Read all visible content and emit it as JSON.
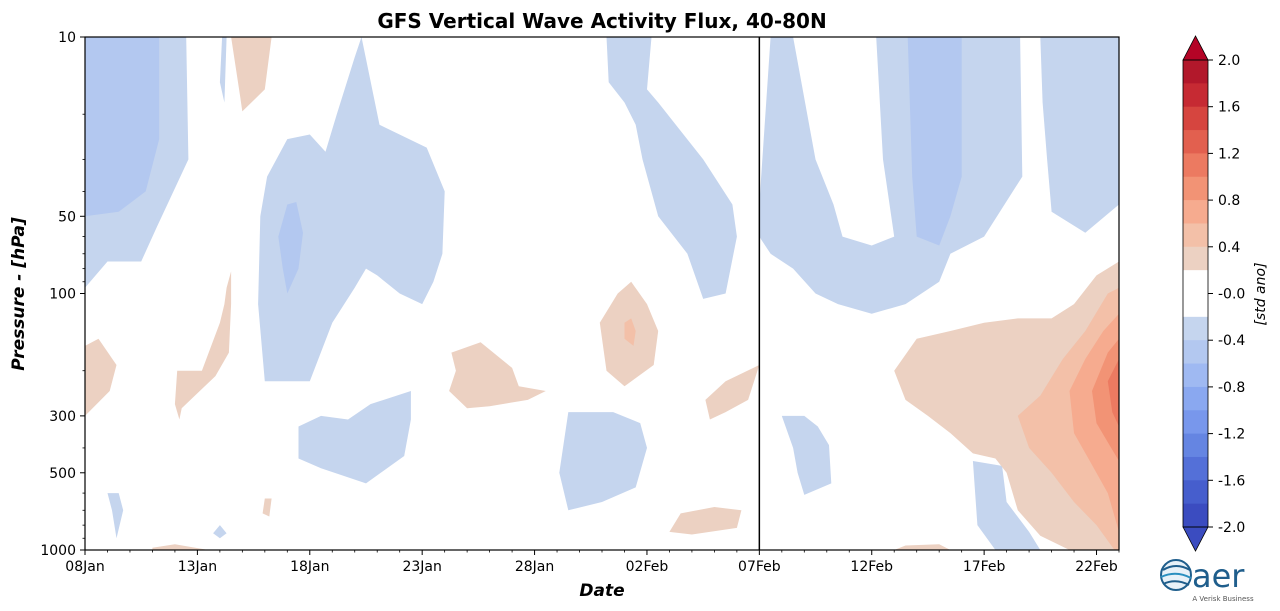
{
  "chart_data": {
    "type": "heatmap",
    "title": "GFS Vertical Wave Activity Flux, 40-80N",
    "xlabel": "Date",
    "ylabel": "Pressure - [hPa]",
    "x_ticks": [
      "08Jan",
      "13Jan",
      "18Jan",
      "23Jan",
      "28Jan",
      "02Feb",
      "07Feb",
      "12Feb",
      "17Feb",
      "22Feb"
    ],
    "x_tick_days": [
      0,
      5,
      10,
      15,
      20,
      25,
      30,
      35,
      40,
      45
    ],
    "x_range_days": [
      0,
      46
    ],
    "forecast_start": "07Feb",
    "y_ticks": [
      10,
      50,
      100,
      300,
      500,
      1000
    ],
    "y_tick_labels": [
      "10",
      "50",
      "100",
      "300",
      "500",
      "1000"
    ],
    "y_range": [
      10,
      1000
    ],
    "y_scale": "log",
    "y_inverted": true,
    "colorbar": {
      "label": "[std ano]",
      "ticks": [
        "2.0",
        "1.6",
        "1.2",
        "0.8",
        "0.4",
        "-0.0",
        "-0.4",
        "-0.8",
        "-1.2",
        "-1.6",
        "-2.0"
      ],
      "levels_top_to_bottom": [
        "#b2182b",
        "#c62a33",
        "#d6453f",
        "#e2604f",
        "#ec7a61",
        "#f29375",
        "#f6ab8f",
        "#f3c0a8",
        "#ecd1c2",
        "#ffffff",
        "#ffffff",
        "#c5d5ee",
        "#b3c8f0",
        "#9fb9f2",
        "#8aa8f0",
        "#7897ec",
        "#6585e2",
        "#5470d8",
        "#465ecd",
        "#3b4cc0"
      ],
      "over_color": "#b40426",
      "under_color": "#3b4cc0"
    },
    "regions": [
      {
        "sign": "neg",
        "level": 1,
        "points": [
          [
            0,
            10
          ],
          [
            4.5,
            10
          ],
          [
            4.6,
            30
          ],
          [
            3.2,
            55
          ],
          [
            2.5,
            75
          ],
          [
            1,
            75
          ],
          [
            0,
            95
          ]
        ]
      },
      {
        "sign": "neg",
        "level": 2,
        "points": [
          [
            0,
            10
          ],
          [
            3.3,
            10
          ],
          [
            3.3,
            25
          ],
          [
            2.7,
            40
          ],
          [
            1.5,
            48
          ],
          [
            0,
            50
          ]
        ]
      },
      {
        "sign": "pos",
        "level": 1,
        "points": [
          [
            6.5,
            10
          ],
          [
            8.3,
            10
          ],
          [
            8,
            16
          ],
          [
            7,
            19.5
          ],
          [
            6.9,
            17
          ]
        ]
      },
      {
        "sign": "neg",
        "level": 1,
        "points": [
          [
            6.1,
            10
          ],
          [
            6.3,
            10
          ],
          [
            6.2,
            18
          ],
          [
            6,
            15
          ]
        ]
      },
      {
        "sign": "neg",
        "level": 1,
        "points": [
          [
            12.3,
            10
          ],
          [
            13.1,
            22
          ],
          [
            15.2,
            27
          ],
          [
            16,
            40
          ],
          [
            15.9,
            70
          ],
          [
            15.5,
            90
          ],
          [
            15,
            110
          ],
          [
            14,
            100
          ],
          [
            13,
            85
          ],
          [
            12.5,
            80
          ],
          [
            12,
            95
          ],
          [
            11,
            130
          ],
          [
            10,
            220
          ],
          [
            8,
            220
          ],
          [
            7.7,
            110
          ],
          [
            7.8,
            50
          ],
          [
            8.1,
            35
          ],
          [
            9,
            25
          ],
          [
            10,
            24
          ],
          [
            10.7,
            28
          ],
          [
            11.2,
            20
          ],
          [
            12,
            12
          ]
        ]
      },
      {
        "sign": "neg",
        "level": 2,
        "points": [
          [
            9.4,
            44
          ],
          [
            9.7,
            58
          ],
          [
            9.5,
            80
          ],
          [
            9,
            100
          ],
          [
            8.8,
            80
          ],
          [
            8.6,
            60
          ],
          [
            9,
            45
          ]
        ]
      },
      {
        "sign": "neg",
        "level": 1,
        "points": [
          [
            23.2,
            10
          ],
          [
            25.2,
            10
          ],
          [
            25,
            16
          ],
          [
            25.5,
            18
          ],
          [
            27.5,
            30
          ],
          [
            28.8,
            45
          ],
          [
            29,
            60
          ],
          [
            28.5,
            100
          ],
          [
            27.5,
            105
          ],
          [
            26.8,
            70
          ],
          [
            25.5,
            50
          ],
          [
            24.8,
            30
          ],
          [
            24.5,
            22
          ],
          [
            24,
            18
          ],
          [
            23.3,
            15
          ]
        ]
      },
      {
        "sign": "neg",
        "level": 1,
        "points": [
          [
            9.5,
            330
          ],
          [
            10.5,
            300
          ],
          [
            11.7,
            310
          ],
          [
            12.7,
            270
          ],
          [
            14.5,
            240
          ],
          [
            14.5,
            310
          ],
          [
            14.2,
            430
          ],
          [
            12.5,
            550
          ],
          [
            10.5,
            480
          ],
          [
            9.5,
            440
          ]
        ]
      },
      {
        "sign": "neg",
        "level": 1,
        "points": [
          [
            21.5,
            290
          ],
          [
            23.5,
            290
          ],
          [
            24.7,
            320
          ],
          [
            25,
            400
          ],
          [
            24.5,
            570
          ],
          [
            23,
            650
          ],
          [
            21.5,
            700
          ],
          [
            21.1,
            500
          ]
        ]
      },
      {
        "sign": "neg",
        "level": 1,
        "points": [
          [
            30,
            45
          ],
          [
            30.5,
            10
          ],
          [
            31.5,
            10
          ],
          [
            32.5,
            30
          ],
          [
            33.3,
            45
          ],
          [
            33.7,
            60
          ],
          [
            35,
            65
          ],
          [
            36,
            60
          ],
          [
            35.5,
            30
          ],
          [
            35.2,
            10
          ],
          [
            41.6,
            10
          ],
          [
            41.7,
            35
          ],
          [
            40,
            60
          ],
          [
            38.5,
            70
          ],
          [
            38,
            90
          ],
          [
            36.5,
            110
          ],
          [
            35,
            120
          ],
          [
            33.5,
            110
          ],
          [
            32.5,
            100
          ],
          [
            31.5,
            80
          ],
          [
            30.5,
            70
          ],
          [
            30,
            60
          ]
        ]
      },
      {
        "sign": "neg",
        "level": 2,
        "points": [
          [
            36.6,
            10
          ],
          [
            39,
            10
          ],
          [
            39,
            35
          ],
          [
            38.5,
            50
          ],
          [
            38,
            65
          ],
          [
            37,
            60
          ],
          [
            36.8,
            35
          ]
        ]
      },
      {
        "sign": "neg",
        "level": 1,
        "points": [
          [
            42.5,
            10
          ],
          [
            46,
            10
          ],
          [
            46,
            45
          ],
          [
            44.5,
            58
          ],
          [
            43,
            48
          ],
          [
            42.8,
            30
          ],
          [
            42.6,
            18
          ]
        ]
      },
      {
        "sign": "neg",
        "level": 1,
        "points": [
          [
            1,
            600
          ],
          [
            1.5,
            600
          ],
          [
            1.7,
            700
          ],
          [
            1.4,
            900
          ],
          [
            1.2,
            700
          ]
        ]
      },
      {
        "sign": "neg",
        "level": 1,
        "points": [
          [
            6,
            800
          ],
          [
            6.3,
            860
          ],
          [
            6,
            900
          ],
          [
            5.7,
            860
          ]
        ]
      },
      {
        "sign": "neg",
        "level": 1,
        "points": [
          [
            31,
            300
          ],
          [
            32,
            300
          ],
          [
            32.6,
            330
          ],
          [
            33.1,
            390
          ],
          [
            33.2,
            550
          ],
          [
            32,
            610
          ],
          [
            31.7,
            500
          ],
          [
            31.5,
            400
          ]
        ]
      },
      {
        "sign": "neg",
        "level": 1,
        "points": [
          [
            39.5,
            450
          ],
          [
            40.8,
            470
          ],
          [
            41,
            650
          ],
          [
            42,
            850
          ],
          [
            42.5,
            1000
          ],
          [
            40.5,
            1000
          ],
          [
            39.7,
            800
          ]
        ]
      },
      {
        "sign": "pos",
        "level": 1,
        "points": [
          [
            0,
            160
          ],
          [
            0.6,
            150
          ],
          [
            1.4,
            190
          ],
          [
            1.1,
            240
          ],
          [
            0,
            300
          ]
        ]
      },
      {
        "sign": "pos",
        "level": 1,
        "points": [
          [
            5.2,
            200
          ],
          [
            6,
            130
          ],
          [
            6.2,
            110
          ],
          [
            6.3,
            95
          ],
          [
            6.5,
            82
          ],
          [
            6.5,
            110
          ],
          [
            6.4,
            170
          ],
          [
            5.8,
            210
          ],
          [
            5,
            245
          ],
          [
            4.3,
            280
          ],
          [
            4.2,
            310
          ],
          [
            4,
            270
          ],
          [
            4.1,
            200
          ]
        ]
      },
      {
        "sign": "pos",
        "level": 1,
        "points": [
          [
            16.3,
            170
          ],
          [
            17.6,
            155
          ],
          [
            19,
            195
          ],
          [
            19.3,
            230
          ],
          [
            20.5,
            240
          ],
          [
            19.7,
            260
          ],
          [
            18,
            275
          ],
          [
            17,
            280
          ],
          [
            16.2,
            240
          ],
          [
            16.5,
            200
          ]
        ]
      },
      {
        "sign": "pos",
        "level": 1,
        "points": [
          [
            23.7,
            100
          ],
          [
            24.3,
            90
          ],
          [
            25,
            110
          ],
          [
            25.5,
            140
          ],
          [
            25.3,
            190
          ],
          [
            24,
            230
          ],
          [
            23.2,
            200
          ],
          [
            22.9,
            130
          ]
        ]
      },
      {
        "sign": "pos",
        "level": 2,
        "points": [
          [
            24,
            130
          ],
          [
            24.3,
            125
          ],
          [
            24.5,
            140
          ],
          [
            24.4,
            160
          ],
          [
            24,
            150
          ]
        ]
      },
      {
        "sign": "pos",
        "level": 1,
        "points": [
          [
            28.5,
            220
          ],
          [
            30,
            190
          ],
          [
            29.5,
            260
          ],
          [
            28.5,
            290
          ],
          [
            27.8,
            310
          ],
          [
            27.6,
            260
          ]
        ]
      },
      {
        "sign": "pos",
        "level": 1,
        "points": [
          [
            26.5,
            720
          ],
          [
            28,
            680
          ],
          [
            29.2,
            700
          ],
          [
            29,
            820
          ],
          [
            27,
            870
          ],
          [
            26,
            850
          ]
        ]
      },
      {
        "sign": "pos",
        "level": 1,
        "points": [
          [
            3,
            980
          ],
          [
            4,
            950
          ],
          [
            5.5,
            1000
          ],
          [
            3,
            1000
          ]
        ]
      },
      {
        "sign": "pos",
        "level": 1,
        "points": [
          [
            8,
            630
          ],
          [
            8.3,
            630
          ],
          [
            8.2,
            740
          ],
          [
            7.9,
            720
          ]
        ]
      },
      {
        "sign": "pos",
        "level": 1,
        "points": [
          [
            36,
            200
          ],
          [
            37,
            150
          ],
          [
            38.5,
            140
          ],
          [
            40,
            130
          ],
          [
            41.5,
            125
          ],
          [
            43,
            125
          ],
          [
            44,
            110
          ],
          [
            45,
            85
          ],
          [
            46,
            75
          ],
          [
            46,
            1000
          ],
          [
            43.8,
            1000
          ],
          [
            42.5,
            880
          ],
          [
            41.5,
            700
          ],
          [
            41,
            500
          ],
          [
            40.5,
            440
          ],
          [
            39.5,
            420
          ],
          [
            38.5,
            350
          ],
          [
            37.5,
            300
          ],
          [
            36.5,
            260
          ]
        ]
      },
      {
        "sign": "pos",
        "level": 2,
        "points": [
          [
            41.5,
            300
          ],
          [
            42.5,
            250
          ],
          [
            43.5,
            180
          ],
          [
            44.5,
            140
          ],
          [
            45.5,
            100
          ],
          [
            46,
            95
          ],
          [
            46,
            1000
          ],
          [
            45.8,
            1000
          ],
          [
            45,
            800
          ],
          [
            44,
            650
          ],
          [
            43,
            500
          ],
          [
            42,
            400
          ]
        ]
      },
      {
        "sign": "pos",
        "level": 3,
        "points": [
          [
            43.8,
            240
          ],
          [
            44.5,
            180
          ],
          [
            45.3,
            140
          ],
          [
            46,
            120
          ],
          [
            46,
            850
          ],
          [
            45.5,
            600
          ],
          [
            44.7,
            450
          ],
          [
            44,
            350
          ]
        ]
      },
      {
        "sign": "pos",
        "level": 4,
        "points": [
          [
            44.8,
            240
          ],
          [
            45.5,
            170
          ],
          [
            46,
            150
          ],
          [
            46,
            450
          ],
          [
            45.5,
            380
          ],
          [
            45,
            320
          ]
        ]
      },
      {
        "sign": "pos",
        "level": 5,
        "points": [
          [
            45.5,
            220
          ],
          [
            46,
            180
          ],
          [
            46,
            330
          ],
          [
            45.7,
            290
          ]
        ]
      },
      {
        "sign": "pos",
        "level": 1,
        "points": [
          [
            36.5,
            960
          ],
          [
            38,
            950
          ],
          [
            38.5,
            1000
          ],
          [
            36,
            1000
          ]
        ]
      }
    ]
  },
  "logo": {
    "text": "aer",
    "sub": "A Verisk Business"
  }
}
